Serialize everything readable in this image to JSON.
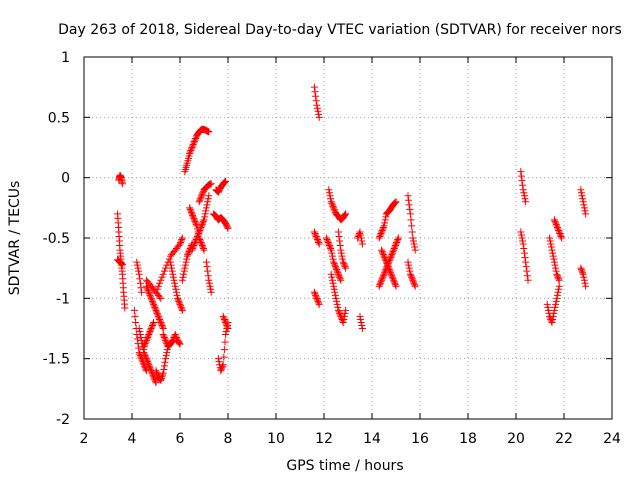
{
  "chart_data": {
    "type": "scatter",
    "title": "Day 263 of 2018, Sidereal Day-to-day VTEC variation (SDTVAR) for receiver nors",
    "xlabel": "GPS time / hours",
    "ylabel": "SDTVAR / TECUs",
    "xlim": [
      2,
      24
    ],
    "ylim": [
      -2,
      1
    ],
    "xticks": [
      2,
      4,
      6,
      8,
      10,
      12,
      14,
      16,
      18,
      20,
      22,
      24
    ],
    "yticks": [
      -2,
      -1.5,
      -1,
      -0.5,
      0,
      0.5,
      1
    ],
    "grid": true,
    "marker": "plus",
    "color": "#ff0000",
    "series": [
      {
        "name": "SDTVAR",
        "segments": [
          {
            "x": [
              3.45,
              3.5,
              3.55,
              3.6
            ],
            "y": [
              -0.02,
              0.02,
              0.0,
              -0.05
            ]
          },
          {
            "x": [
              3.4,
              3.45,
              3.5,
              3.55,
              3.6,
              3.65,
              3.7
            ],
            "y": [
              -0.3,
              -0.45,
              -0.6,
              -0.7,
              -0.8,
              -0.95,
              -1.08
            ]
          },
          {
            "x": [
              3.4,
              3.5,
              3.6
            ],
            "y": [
              -0.68,
              -0.7,
              -0.72
            ]
          },
          {
            "x": [
              4.1,
              4.2,
              4.3,
              4.4,
              4.5,
              4.6
            ],
            "y": [
              -1.1,
              -1.3,
              -1.45,
              -1.5,
              -1.55,
              -1.6
            ]
          },
          {
            "x": [
              4.2,
              4.3,
              4.4
            ],
            "y": [
              -0.7,
              -0.8,
              -0.95
            ]
          },
          {
            "x": [
              4.3,
              4.4,
              4.5,
              4.6,
              4.7,
              4.8,
              4.9,
              5.0
            ],
            "y": [
              -1.25,
              -1.35,
              -1.45,
              -1.5,
              -1.55,
              -1.6,
              -1.65,
              -1.7
            ]
          },
          {
            "x": [
              4.5,
              4.6,
              4.7,
              4.8,
              4.9
            ],
            "y": [
              -1.4,
              -1.35,
              -1.3,
              -1.25,
              -1.2
            ]
          },
          {
            "x": [
              4.6,
              4.7,
              4.8,
              4.9,
              5.0,
              5.1,
              5.2,
              5.3
            ],
            "y": [
              -0.9,
              -0.95,
              -1.0,
              -1.05,
              -1.1,
              -1.15,
              -1.2,
              -1.25
            ]
          },
          {
            "x": [
              4.6,
              4.8,
              5.0,
              5.2
            ],
            "y": [
              -0.85,
              -0.9,
              -0.95,
              -1.0
            ]
          },
          {
            "x": [
              5.0,
              5.1,
              5.2,
              5.3,
              5.4,
              5.5
            ],
            "y": [
              -1.6,
              -1.65,
              -1.68,
              -1.62,
              -1.5,
              -1.4
            ]
          },
          {
            "x": [
              5.0,
              5.2,
              5.4,
              5.6,
              5.8,
              6.0,
              6.1
            ],
            "y": [
              -0.95,
              -0.85,
              -0.75,
              -0.65,
              -0.6,
              -0.55,
              -0.5
            ]
          },
          {
            "x": [
              5.3,
              5.4,
              5.5,
              5.6,
              5.7,
              5.8,
              5.9,
              6.0
            ],
            "y": [
              -1.3,
              -1.35,
              -1.4,
              -1.38,
              -1.35,
              -1.3,
              -1.35,
              -1.38
            ]
          },
          {
            "x": [
              5.6,
              5.7,
              5.8,
              5.9,
              6.0,
              6.1
            ],
            "y": [
              -0.7,
              -0.8,
              -0.9,
              -1.0,
              -1.05,
              -1.1
            ]
          },
          {
            "x": [
              6.1,
              6.2,
              6.3,
              6.4,
              6.5
            ],
            "y": [
              -0.85,
              -0.75,
              -0.65,
              -0.6,
              -0.55
            ]
          },
          {
            "x": [
              6.2,
              6.3,
              6.4,
              6.5,
              6.6,
              6.7,
              6.8,
              6.9,
              7.0,
              7.1,
              7.2
            ],
            "y": [
              0.05,
              0.12,
              0.2,
              0.25,
              0.3,
              0.35,
              0.38,
              0.4,
              0.4,
              0.39,
              0.38
            ]
          },
          {
            "x": [
              6.4,
              6.5,
              6.6,
              6.7,
              6.8,
              6.9,
              7.0
            ],
            "y": [
              -0.25,
              -0.3,
              -0.35,
              -0.4,
              -0.5,
              -0.55,
              -0.6
            ]
          },
          {
            "x": [
              6.5,
              6.6,
              6.7,
              6.8,
              6.9,
              7.0,
              7.1,
              7.2
            ],
            "y": [
              -0.6,
              -0.55,
              -0.5,
              -0.45,
              -0.4,
              -0.35,
              -0.25,
              -0.15
            ]
          },
          {
            "x": [
              6.8,
              6.9,
              7.0,
              7.1,
              7.2,
              7.3
            ],
            "y": [
              -0.2,
              -0.15,
              -0.1,
              -0.08,
              -0.06,
              -0.05
            ]
          },
          {
            "x": [
              7.1,
              7.2,
              7.3
            ],
            "y": [
              -0.7,
              -0.85,
              -0.95
            ]
          },
          {
            "x": [
              7.4,
              7.5,
              7.6,
              7.7,
              7.8,
              7.9,
              8.0
            ],
            "y": [
              -0.3,
              -0.32,
              -0.35,
              -0.33,
              -0.35,
              -0.38,
              -0.42
            ]
          },
          {
            "x": [
              7.5,
              7.6,
              7.7,
              7.8,
              7.9
            ],
            "y": [
              -0.1,
              -0.12,
              -0.08,
              -0.05,
              -0.03
            ]
          },
          {
            "x": [
              7.6,
              7.7,
              7.8,
              7.9,
              8.0
            ],
            "y": [
              -1.5,
              -1.6,
              -1.55,
              -1.3,
              -1.2
            ]
          },
          {
            "x": [
              7.8,
              7.9,
              8.0
            ],
            "y": [
              -1.15,
              -1.2,
              -1.25
            ]
          },
          {
            "x": [
              11.6,
              11.7,
              11.8
            ],
            "y": [
              0.75,
              0.6,
              0.5
            ]
          },
          {
            "x": [
              11.6,
              11.7,
              11.8
            ],
            "y": [
              -0.45,
              -0.5,
              -0.55
            ]
          },
          {
            "x": [
              11.6,
              11.7,
              11.8
            ],
            "y": [
              -0.95,
              -1.0,
              -1.05
            ]
          },
          {
            "x": [
              12.2,
              12.3,
              12.4,
              12.5,
              12.6,
              12.7,
              12.8,
              12.9
            ],
            "y": [
              -0.1,
              -0.2,
              -0.25,
              -0.3,
              -0.32,
              -0.35,
              -0.33,
              -0.3
            ]
          },
          {
            "x": [
              12.1,
              12.2,
              12.3,
              12.4,
              12.5,
              12.6,
              12.7
            ],
            "y": [
              -0.5,
              -0.55,
              -0.6,
              -0.7,
              -0.75,
              -0.8,
              -0.85
            ]
          },
          {
            "x": [
              12.3,
              12.4,
              12.5,
              12.6,
              12.7,
              12.8,
              12.9
            ],
            "y": [
              -0.8,
              -0.9,
              -1.0,
              -1.1,
              -1.15,
              -1.2,
              -1.1
            ]
          },
          {
            "x": [
              12.6,
              12.7,
              12.8,
              12.9
            ],
            "y": [
              -0.45,
              -0.6,
              -0.7,
              -0.75
            ]
          },
          {
            "x": [
              13.4,
              13.5,
              13.6
            ],
            "y": [
              -0.5,
              -0.45,
              -0.55
            ]
          },
          {
            "x": [
              13.5,
              13.6
            ],
            "y": [
              -1.15,
              -1.25
            ]
          },
          {
            "x": [
              14.3,
              14.4,
              14.5,
              14.6,
              14.7,
              14.8,
              14.9,
              15.0
            ],
            "y": [
              -0.5,
              -0.45,
              -0.4,
              -0.3,
              -0.28,
              -0.25,
              -0.22,
              -0.2
            ]
          },
          {
            "x": [
              14.3,
              14.4,
              14.5,
              14.6,
              14.7,
              14.8,
              14.9,
              15.0,
              15.1
            ],
            "y": [
              -0.9,
              -0.85,
              -0.8,
              -0.75,
              -0.7,
              -0.65,
              -0.6,
              -0.55,
              -0.5
            ]
          },
          {
            "x": [
              14.4,
              14.5,
              14.6,
              14.7,
              14.8,
              14.9,
              15.0
            ],
            "y": [
              -0.6,
              -0.65,
              -0.7,
              -0.75,
              -0.8,
              -0.85,
              -0.9
            ]
          },
          {
            "x": [
              15.5,
              15.6,
              15.7,
              15.8
            ],
            "y": [
              -0.15,
              -0.3,
              -0.5,
              -0.6
            ]
          },
          {
            "x": [
              15.5,
              15.6,
              15.7,
              15.8
            ],
            "y": [
              -0.7,
              -0.8,
              -0.85,
              -0.9
            ]
          },
          {
            "x": [
              20.2,
              20.3,
              20.4
            ],
            "y": [
              0.05,
              -0.1,
              -0.2
            ]
          },
          {
            "x": [
              20.2,
              20.3,
              20.4,
              20.5
            ],
            "y": [
              -0.45,
              -0.55,
              -0.7,
              -0.85
            ]
          },
          {
            "x": [
              21.3,
              21.4,
              21.5,
              21.6,
              21.7,
              21.8
            ],
            "y": [
              -1.05,
              -1.15,
              -1.2,
              -1.1,
              -1.0,
              -0.9
            ]
          },
          {
            "x": [
              21.4,
              21.5,
              21.6,
              21.7,
              21.8
            ],
            "y": [
              -0.5,
              -0.6,
              -0.7,
              -0.8,
              -0.85
            ]
          },
          {
            "x": [
              21.6,
              21.7,
              21.8,
              21.9
            ],
            "y": [
              -0.35,
              -0.4,
              -0.45,
              -0.5
            ]
          },
          {
            "x": [
              22.7,
              22.8,
              22.9
            ],
            "y": [
              -0.1,
              -0.2,
              -0.3
            ]
          },
          {
            "x": [
              22.7,
              22.8,
              22.9
            ],
            "y": [
              -0.75,
              -0.8,
              -0.9
            ]
          }
        ]
      }
    ]
  }
}
